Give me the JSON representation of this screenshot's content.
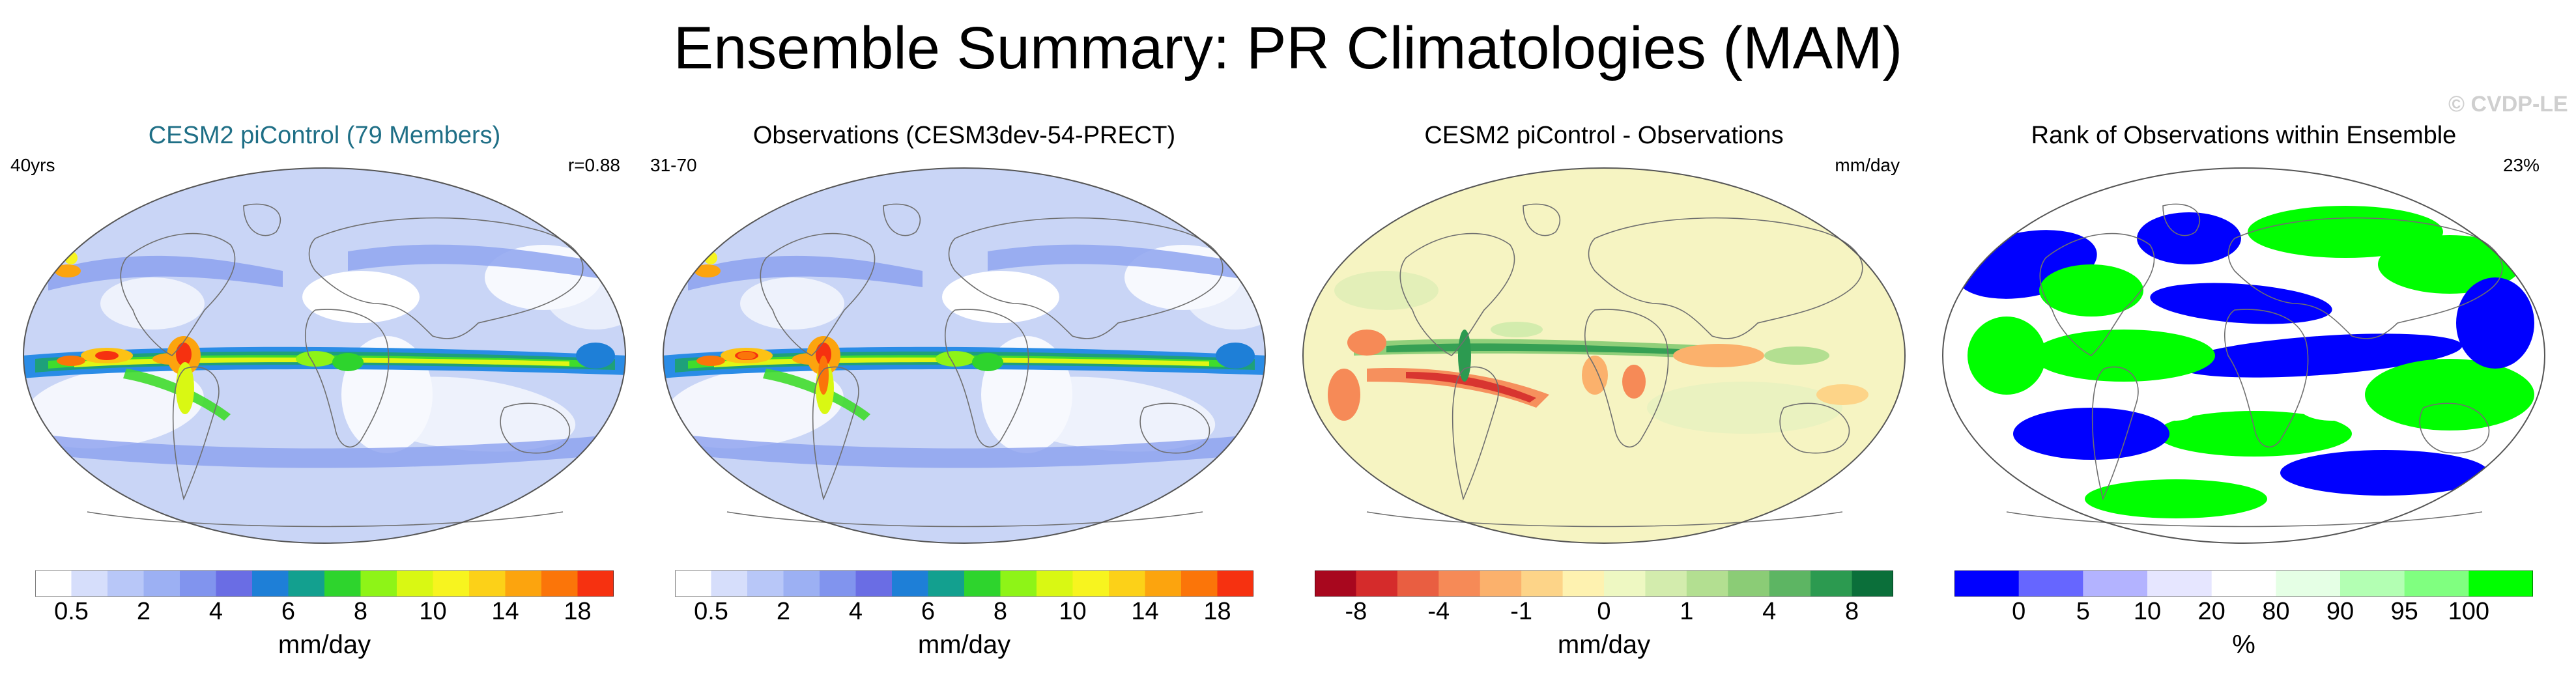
{
  "title": "Ensemble Summary: PR Climatologies (MAM)",
  "watermark": "© CVDP-LE",
  "panels": [
    {
      "title": "CESM2 piControl (79 Members)",
      "left_label": "40yrs",
      "right_label": "r=0.88",
      "map": "ensemble-mean",
      "unit": "mm/day",
      "colorbar": {
        "colors": [
          "#ffffff",
          "#d6defb",
          "#b8c7f8",
          "#9cb0f3",
          "#8194ee",
          "#6a6de4",
          "#1e7fd7",
          "#13a08f",
          "#2ed42d",
          "#8ef417",
          "#d9f813",
          "#f7f41f",
          "#fcd118",
          "#fca40e",
          "#fb7509",
          "#f63110"
        ],
        "labels": [
          "0.5",
          "2",
          "4",
          "6",
          "8",
          "10",
          "14",
          "18"
        ],
        "label_at_edges": [
          1,
          3,
          5,
          7,
          9,
          11,
          13,
          15
        ]
      }
    },
    {
      "title": "Observations (CESM3dev-54-PRECT)",
      "left_label": "31-70",
      "right_label": "",
      "map": "observations",
      "unit": "mm/day",
      "colorbar": {
        "colors": [
          "#ffffff",
          "#d6defb",
          "#b8c7f8",
          "#9cb0f3",
          "#8194ee",
          "#6a6de4",
          "#1e7fd7",
          "#13a08f",
          "#2ed42d",
          "#8ef417",
          "#d9f813",
          "#f7f41f",
          "#fcd118",
          "#fca40e",
          "#fb7509",
          "#f63110"
        ],
        "labels": [
          "0.5",
          "2",
          "4",
          "6",
          "8",
          "10",
          "14",
          "18"
        ],
        "label_at_edges": [
          1,
          3,
          5,
          7,
          9,
          11,
          13,
          15
        ]
      }
    },
    {
      "title": "CESM2 piControl - Observations",
      "left_label": "",
      "right_label": "mm/day",
      "map": "difference",
      "unit": "mm/day",
      "colorbar": {
        "colors": [
          "#a8071e",
          "#d52b2b",
          "#e95e41",
          "#f68a57",
          "#fbb16c",
          "#fdd488",
          "#fef2b0",
          "#eef8c2",
          "#d3ecad",
          "#b3df91",
          "#8bcc76",
          "#5db563",
          "#2c9a50",
          "#0b6f3a"
        ],
        "labels": [
          "-8",
          "-4",
          "-1",
          "0",
          "1",
          "4",
          "8"
        ],
        "label_at_edges": [
          1,
          3,
          5,
          7,
          9,
          11,
          13
        ]
      }
    },
    {
      "title": "Rank of Observations within Ensemble",
      "left_label": "",
      "right_label": "23%",
      "map": "rank",
      "unit": "%",
      "colorbar": {
        "colors": [
          "#0000ff",
          "#6666ff",
          "#b3b3ff",
          "#e6e6ff",
          "#ffffff",
          "#e5ffe5",
          "#b3ffb3",
          "#80ff80",
          "#00ff00"
        ],
        "labels": [
          "0",
          "5",
          "10",
          "20",
          "80",
          "90",
          "95",
          "100"
        ],
        "label_at_edges": [
          1,
          2,
          3,
          4,
          5,
          6,
          7,
          8
        ]
      }
    }
  ]
}
